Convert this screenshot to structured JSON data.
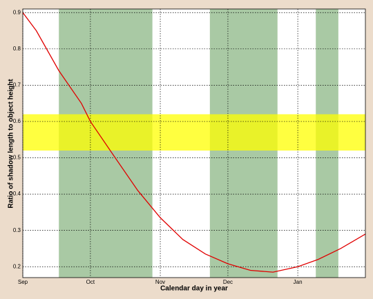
{
  "chart_data": {
    "type": "line",
    "xlabel": "Calendar day in year",
    "ylabel": "Ratio of shadow length to object height",
    "x": [
      244,
      250,
      260,
      270,
      274,
      285,
      295,
      305,
      315,
      325,
      335,
      345,
      355,
      366,
      375,
      385,
      396
    ],
    "series": [
      {
        "color": "#e00000",
        "values": [
          0.9,
          0.85,
          0.74,
          0.65,
          0.6,
          0.5,
          0.41,
          0.335,
          0.275,
          0.235,
          0.208,
          0.19,
          0.185,
          0.2,
          0.22,
          0.25,
          0.29
        ]
      }
    ],
    "xlim": [
      244,
      396
    ],
    "ylim": [
      0.17,
      0.91
    ],
    "xticks": [
      {
        "value": 244,
        "label": "Sep"
      },
      {
        "value": 274,
        "label": "Oct"
      },
      {
        "value": 305,
        "label": "Nov"
      },
      {
        "value": 335,
        "label": "Dec"
      },
      {
        "value": 366,
        "label": "Jan"
      }
    ],
    "yticks": [
      0.2,
      0.3,
      0.4,
      0.5,
      0.6,
      0.7,
      0.8,
      0.9
    ],
    "grid": true,
    "x_bands": {
      "color": "#a9c9a4",
      "ranges": [
        [
          260,
          301.5
        ],
        [
          327,
          357
        ],
        [
          374,
          384
        ]
      ]
    },
    "y_band": {
      "color": "#ffff00",
      "opacity": 0.75,
      "range": [
        0.52,
        0.62
      ]
    }
  }
}
